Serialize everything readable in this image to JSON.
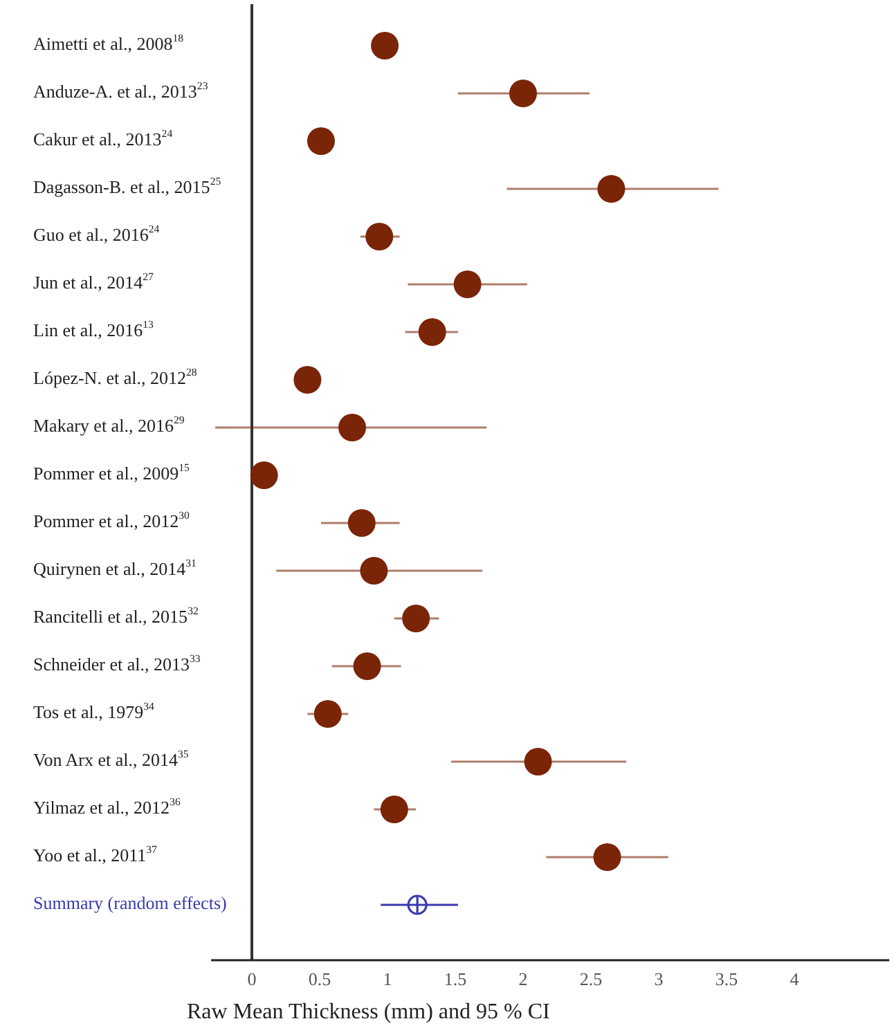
{
  "chart_data": {
    "type": "scatter",
    "orientation": "horizontal",
    "xlabel": "Raw Mean Thickness (mm) and 95 % CI",
    "categories": [
      "Aimetti  et al., 2008$^{18}$",
      "Anduze-A. et al., 2013$^{23}$",
      "Cakur et al., 2013$^{24}$",
      "Dagasson-B. et al., 2015$^{25}$",
      "Guo et al., 2016$^{24}$",
      "Jun et al., 2014$^{27}$",
      "Lin et al., 2016$^{13}$",
      "López-N. et al., 2012$^{28}$",
      "Makary et al., 2016$^{29}$",
      "Pommer et al., 2009$^{15}$",
      "Pommer et al., 2012$^{30}$",
      "Quirynen et al., 2014$^{31}$",
      "Rancitelli et al., 2015$^{32}$",
      "Schneider et al., 2013$^{33}$",
      "Tos et al., 1979$^{34}$",
      "Von Arx et al., 2014$^{35}$",
      "Yilmaz et al., 2012$^{36}$",
      "Yoo et al., 2011$^{37}$",
      "Summary (random effects)"
    ],
    "series": [
      {
        "color": "#7a2408",
        "marker": "circle",
        "values": [
          0.98,
          2.0,
          0.51,
          2.65,
          0.94,
          1.59,
          1.33,
          0.41,
          0.74,
          0.09,
          0.81,
          0.9,
          1.21,
          0.85,
          0.56,
          2.11,
          1.05,
          2.62,
          null
        ],
        "errors": [
          null,
          [
            1.52,
            2.49
          ],
          null,
          [
            1.88,
            3.44
          ],
          [
            0.8,
            1.09
          ],
          [
            1.15,
            2.03
          ],
          [
            1.13,
            1.52
          ],
          null,
          [
            -0.27,
            1.73
          ],
          null,
          [
            0.51,
            1.09
          ],
          [
            0.18,
            1.7
          ],
          [
            1.05,
            1.38
          ],
          [
            0.59,
            1.1
          ],
          [
            0.41,
            0.71
          ],
          [
            1.47,
            2.76
          ],
          [
            0.9,
            1.21
          ],
          [
            2.17,
            3.07
          ],
          null
        ]
      },
      {
        "color": "#3a3ab0",
        "marker": "circle",
        "values": [
          null,
          null,
          null,
          null,
          null,
          null,
          null,
          null,
          null,
          null,
          null,
          null,
          null,
          null,
          null,
          null,
          null,
          null,
          1.22
        ],
        "errors": [
          null,
          null,
          null,
          null,
          null,
          null,
          null,
          null,
          null,
          null,
          null,
          null,
          null,
          null,
          null,
          null,
          null,
          null,
          [
            0.95,
            1.52
          ]
        ]
      }
    ],
    "xlim": [
      -0.3,
      4.7
    ],
    "xticks": [
      0,
      0.5,
      1,
      1.5,
      2,
      2.5,
      3,
      3.5,
      4
    ],
    "grid": false
  }
}
